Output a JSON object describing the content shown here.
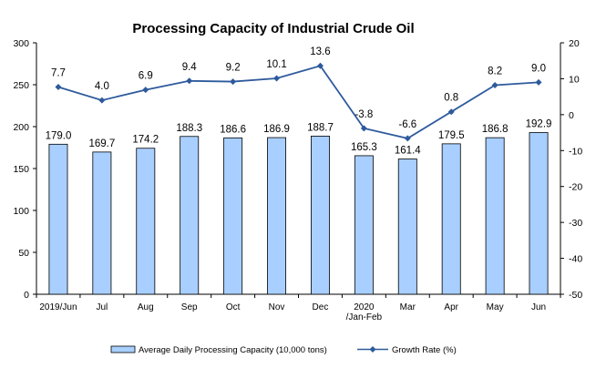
{
  "chart_data": {
    "type": "bar",
    "title": "Processing Capacity of Industrial Crude Oil",
    "categories": [
      "2019/Jun",
      "Jul",
      "Aug",
      "Sep",
      "Oct",
      "Nov",
      "Dec",
      "2020\n/Jan-Feb",
      "Mar",
      "Apr",
      "May",
      "Jun"
    ],
    "category_lines": [
      [
        "2019/Jun"
      ],
      [
        "Jul"
      ],
      [
        "Aug"
      ],
      [
        "Sep"
      ],
      [
        "Oct"
      ],
      [
        "Nov"
      ],
      [
        "Dec"
      ],
      [
        "2020",
        "/Jan-Feb"
      ],
      [
        "Mar"
      ],
      [
        "Apr"
      ],
      [
        "May"
      ],
      [
        "Jun"
      ]
    ],
    "series": [
      {
        "name": "Average Daily Processing Capacity (10,000 tons)",
        "type": "bar",
        "axis": "left",
        "color": "#a8cfff",
        "stroke": "#000000",
        "values": [
          179.0,
          169.7,
          174.2,
          188.3,
          186.6,
          186.9,
          188.7,
          165.3,
          161.4,
          179.5,
          186.8,
          192.9
        ],
        "labels": [
          "179.0",
          "169.7",
          "174.2",
          "188.3",
          "186.6",
          "186.9",
          "188.7",
          "165.3",
          "161.4",
          "179.5",
          "186.8",
          "192.9"
        ]
      },
      {
        "name": "Growth Rate (%)",
        "type": "line",
        "axis": "right",
        "color": "#2e5a9c",
        "values": [
          7.7,
          4.0,
          6.9,
          9.4,
          9.2,
          10.1,
          13.6,
          -3.8,
          -6.6,
          0.8,
          8.2,
          9.0
        ],
        "labels": [
          "7.7",
          "4.0",
          "6.9",
          "9.4",
          "9.2",
          "10.1",
          "13.6",
          "-3.8",
          "-6.6",
          "0.8",
          "8.2",
          "9.0"
        ]
      }
    ],
    "y_left": {
      "min": 0,
      "max": 300,
      "step": 50,
      "ticks": [
        "0",
        "50",
        "100",
        "150",
        "200",
        "250",
        "300"
      ]
    },
    "y_right": {
      "min": -50,
      "max": 20,
      "step": 10,
      "ticks": [
        "-50",
        "-40",
        "-30",
        "-20",
        "-10",
        "0",
        "10",
        "20"
      ]
    },
    "grid": false,
    "legend_position": "bottom"
  }
}
